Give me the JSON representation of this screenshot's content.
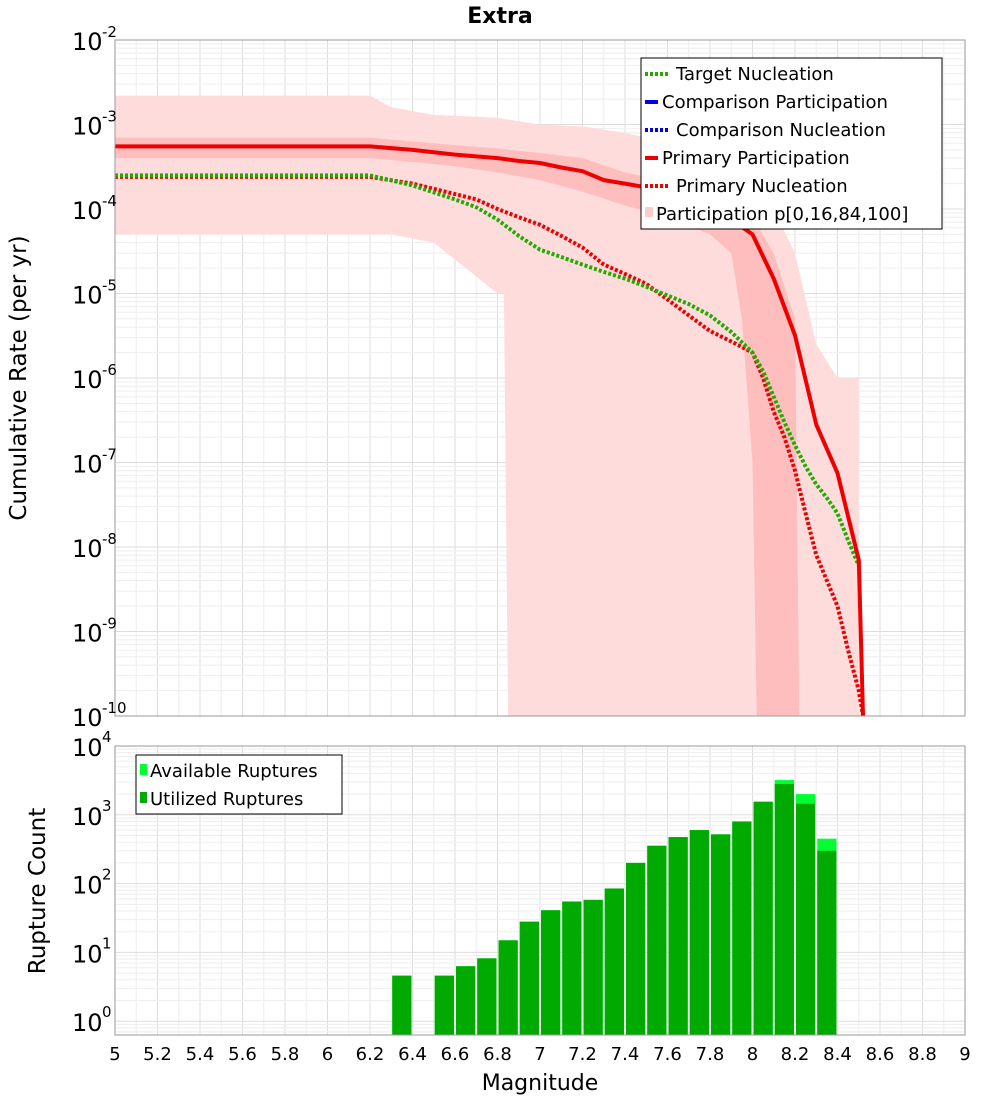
{
  "chart_data": [
    {
      "type": "line",
      "title": "Extra",
      "ylabel": "Cumulative Rate (per yr)",
      "xlabel": "",
      "xlim": [
        5,
        9
      ],
      "ylim_log10": [
        -10,
        -2
      ],
      "yscale": "log",
      "grid": true,
      "legend_position": "top-right",
      "y_tick_exponents": [
        "-10",
        "-9",
        "-8",
        "-7",
        "-6",
        "-5",
        "-4",
        "-3",
        "-2"
      ],
      "y_tick_base": "10",
      "series": [
        {
          "name": "Target Nucleation",
          "color": "#22aa00",
          "style": "dotted",
          "x": [
            5.0,
            6.2,
            6.4,
            6.6,
            6.7,
            6.8,
            6.9,
            7.0,
            7.1,
            7.2,
            7.3,
            7.4,
            7.5,
            7.6,
            7.7,
            7.8,
            7.9,
            8.0,
            8.05,
            8.1,
            8.15,
            8.2,
            8.25,
            8.3,
            8.35,
            8.4,
            8.45,
            8.5
          ],
          "y": [
            0.00025,
            0.00025,
            0.00019,
            0.00013,
            0.000105,
            7.5e-05,
            4.8e-05,
            3.3e-05,
            2.7e-05,
            2.2e-05,
            1.8e-05,
            1.5e-05,
            1.2e-05,
            9.5e-06,
            7.5e-06,
            5.5e-06,
            3.5e-06,
            2e-06,
            1.2e-06,
            6e-07,
            3e-07,
            1.6e-07,
            9e-08,
            5.5e-08,
            3.8e-08,
            2.5e-08,
            1.2e-08,
            6e-09
          ]
        },
        {
          "name": "Comparison Participation",
          "color": "#0000ee",
          "style": "solid",
          "x": [],
          "y": []
        },
        {
          "name": "Comparison Nucleation",
          "color": "#0000ee",
          "style": "dotted",
          "x": [],
          "y": []
        },
        {
          "name": "Primary Participation",
          "color": "#ee0000",
          "style": "solid",
          "x": [
            5.0,
            6.2,
            6.4,
            6.6,
            6.8,
            6.9,
            7.0,
            7.1,
            7.2,
            7.3,
            7.4,
            7.5,
            7.6,
            7.7,
            7.8,
            7.9,
            8.0,
            8.1,
            8.2,
            8.3,
            8.4,
            8.5,
            8.52
          ],
          "y": [
            0.00055,
            0.00055,
            0.0005,
            0.00044,
            0.0004,
            0.00037,
            0.00035,
            0.00031,
            0.00028,
            0.00022,
            0.0002,
            0.00018,
            0.00016,
            0.00012,
            0.0001,
            7.5e-05,
            5e-05,
            1.5e-05,
            3.2e-06,
            2.8e-07,
            7.5e-08,
            7e-09,
            1e-10
          ]
        },
        {
          "name": "Primary Nucleation",
          "color": "#ee0000",
          "style": "dotted",
          "x": [
            5.0,
            6.2,
            6.4,
            6.6,
            6.7,
            6.8,
            6.9,
            7.0,
            7.1,
            7.2,
            7.3,
            7.4,
            7.5,
            7.6,
            7.7,
            7.8,
            7.9,
            8.0,
            8.05,
            8.1,
            8.15,
            8.2,
            8.25,
            8.3,
            8.35,
            8.4,
            8.45,
            8.5,
            8.52
          ],
          "y": [
            0.00024,
            0.00024,
            0.0002,
            0.00015,
            0.00013,
            0.0001,
            8e-05,
            6.5e-05,
            4.8e-05,
            3.5e-05,
            2.2e-05,
            1.7e-05,
            1.3e-05,
            8.5e-06,
            5.5e-06,
            3.6e-06,
            2.7e-06,
            2e-06,
            1e-06,
            4e-07,
            2e-07,
            8e-08,
            2.5e-08,
            8e-09,
            4e-09,
            2e-09,
            6e-10,
            2e-10,
            1e-10
          ]
        }
      ],
      "band": {
        "name": "Participation p[0,16,84,100]",
        "color": "#ffcccc",
        "outer_upper": {
          "x": [
            5.0,
            6.2,
            6.3,
            6.5,
            6.8,
            7.0,
            7.2,
            7.4,
            7.6,
            7.8,
            7.9,
            8.0,
            8.1,
            8.2,
            8.3,
            8.4,
            8.5
          ],
          "y": [
            0.0022,
            0.0022,
            0.0016,
            0.0013,
            0.0012,
            0.001,
            0.00095,
            0.0008,
            0.0006,
            0.00045,
            0.00035,
            0.0002,
            0.0001,
            3e-05,
            2.5e-06,
            1e-06,
            1e-06
          ]
        },
        "outer_lower": {
          "x": [
            5.0,
            6.3,
            6.5,
            6.8,
            6.83,
            6.85,
            8.5
          ],
          "y": [
            5e-05,
            5e-05,
            4e-05,
            1e-05,
            1e-05,
            1e-10,
            1e-10
          ]
        },
        "inner_upper": {
          "x": [
            5.0,
            6.2,
            6.4,
            6.6,
            6.8,
            7.0,
            7.2,
            7.3,
            7.4,
            7.5,
            7.6,
            7.7,
            7.8,
            7.9,
            8.0,
            8.1,
            8.2,
            8.22
          ],
          "y": [
            0.0007,
            0.0007,
            0.00063,
            0.00057,
            0.00052,
            0.00046,
            0.0004,
            0.00033,
            0.00027,
            0.00024,
            0.00021,
            0.00018,
            0.00015,
            0.00012,
            8e-05,
            3e-05,
            5e-06,
            1e-10
          ]
        },
        "inner_lower": {
          "x": [
            5.0,
            6.2,
            6.4,
            6.6,
            6.8,
            7.0,
            7.2,
            7.4,
            7.6,
            7.8,
            7.9,
            7.95,
            8.0,
            8.02,
            8.22
          ],
          "y": [
            0.0004,
            0.0004,
            0.00036,
            0.00032,
            0.00027,
            0.00022,
            0.00016,
            0.00011,
            8e-05,
            5e-05,
            3e-05,
            5e-06,
            1e-07,
            1e-10,
            1e-10
          ]
        }
      }
    },
    {
      "type": "bar",
      "title": "",
      "xlabel": "Magnitude",
      "ylabel": "Rupture Count",
      "xlim": [
        5,
        9
      ],
      "ylim_log10": [
        -0.2,
        4
      ],
      "yscale": "log",
      "grid": true,
      "legend_position": "top-left",
      "x_ticks": [
        "5",
        "5.2",
        "5.4",
        "5.6",
        "5.8",
        "6",
        "6.2",
        "6.4",
        "6.6",
        "6.8",
        "7",
        "7.2",
        "7.4",
        "7.6",
        "7.8",
        "8",
        "8.2",
        "8.4",
        "8.6",
        "8.8",
        "9"
      ],
      "y_tick_exponents": [
        "0",
        "1",
        "2",
        "3",
        "4"
      ],
      "y_tick_base": "10",
      "bin_width": 0.1,
      "bin_centers": [
        6.35,
        6.55,
        6.65,
        6.75,
        6.85,
        6.95,
        7.05,
        7.15,
        7.25,
        7.35,
        7.45,
        7.55,
        7.65,
        7.75,
        7.85,
        7.95,
        8.05,
        8.15,
        8.25,
        8.35
      ],
      "series": [
        {
          "name": "Available Ruptures",
          "color": "#00ff33",
          "values": [
            4.6,
            4.6,
            6.3,
            8.2,
            15,
            28,
            41,
            55,
            58,
            85,
            200,
            355,
            475,
            600,
            520,
            800,
            1550,
            3200,
            2000,
            450
          ]
        },
        {
          "name": "Utilized Ruptures",
          "color": "#00aa00",
          "values": [
            4.6,
            4.6,
            6.3,
            8.2,
            15,
            28,
            41,
            55,
            58,
            85,
            200,
            355,
            475,
            600,
            520,
            800,
            1550,
            2800,
            1450,
            300
          ]
        }
      ]
    }
  ]
}
